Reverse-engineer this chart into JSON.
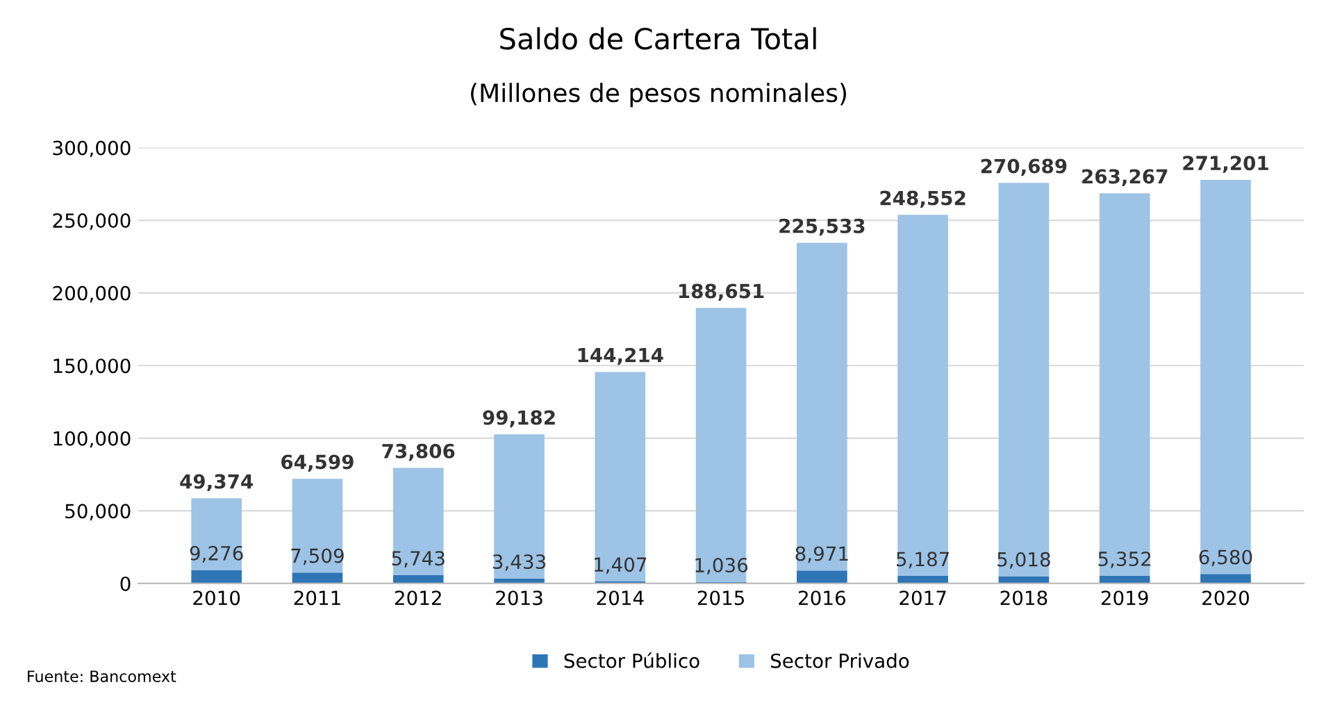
{
  "chart_data": {
    "type": "bar",
    "title": "Saldo de Cartera Total",
    "subtitle": "(Millones de pesos nominales)",
    "categories": [
      "2010",
      "2011",
      "2012",
      "2013",
      "2014",
      "2015",
      "2016",
      "2017",
      "2018",
      "2019",
      "2020"
    ],
    "series": [
      {
        "name": "Sector Público",
        "color": "#2e75b6",
        "values": [
          9276,
          7509,
          5743,
          3433,
          1407,
          1036,
          8971,
          5187,
          5018,
          5352,
          6580
        ],
        "value_labels": [
          "9,276",
          "7,509",
          "5,743",
          "3,433",
          "1,407",
          "1,036",
          "8,971",
          "5,187",
          "5,018",
          "5,352",
          "6,580"
        ]
      },
      {
        "name": "Sector Privado",
        "color": "#9dc3e6",
        "values": [
          49374,
          64599,
          73806,
          99182,
          144214,
          188651,
          225533,
          248552,
          270689,
          263267,
          271201
        ],
        "value_labels": [
          "49,374",
          "64,599",
          "73,806",
          "99,182",
          "144,214",
          "188,651",
          "225,533",
          "248,552",
          "270,689",
          "263,267",
          "271,201"
        ]
      }
    ],
    "stacked": true,
    "ylim": [
      0,
      300000
    ],
    "yticks": [
      {
        "value": 0,
        "label": "0"
      },
      {
        "value": 50000,
        "label": "50,000"
      },
      {
        "value": 100000,
        "label": "100,000"
      },
      {
        "value": 150000,
        "label": "150,000"
      },
      {
        "value": 200000,
        "label": "200,000"
      },
      {
        "value": 250000,
        "label": "250,000"
      },
      {
        "value": 300000,
        "label": "300,000"
      }
    ],
    "grid": "y",
    "legend": "bottom",
    "annotations": [
      "Fuente: Bancomext"
    ]
  }
}
